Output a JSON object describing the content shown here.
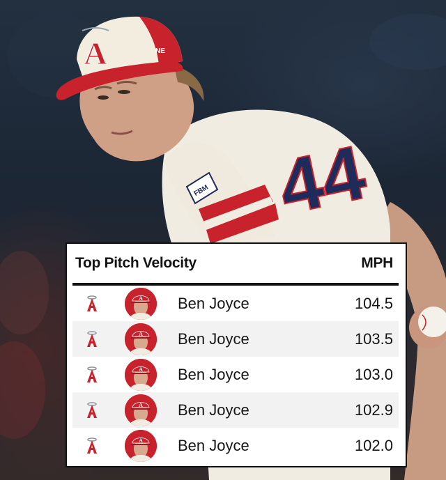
{
  "table": {
    "title": "Top Pitch Velocity",
    "unit_header": "MPH",
    "rows": [
      {
        "team_icon": "angels-logo-icon",
        "avatar_icon": "player-headshot-icon",
        "player": "Ben Joyce",
        "mph": "104.5"
      },
      {
        "team_icon": "angels-logo-icon",
        "avatar_icon": "player-headshot-icon",
        "player": "Ben Joyce",
        "mph": "103.5"
      },
      {
        "team_icon": "angels-logo-icon",
        "avatar_icon": "player-headshot-icon",
        "player": "Ben Joyce",
        "mph": "103.0"
      },
      {
        "team_icon": "angels-logo-icon",
        "avatar_icon": "player-headshot-icon",
        "player": "Ben Joyce",
        "mph": "102.9"
      },
      {
        "team_icon": "angels-logo-icon",
        "avatar_icon": "player-headshot-icon",
        "player": "Ben Joyce",
        "mph": "102.0"
      }
    ]
  },
  "photo": {
    "cap_letter": "A",
    "cap_brand": "NE",
    "sleeve_patch": "FBM",
    "jersey_number": "44"
  },
  "colors": {
    "angels_red": "#c8232c",
    "jersey_cream": "#f1ece2",
    "number_navy": "#1f2b5a"
  }
}
